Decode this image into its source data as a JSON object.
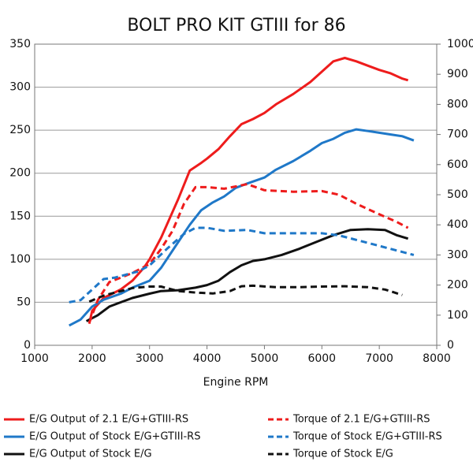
{
  "chart_data": {
    "type": "line",
    "title": "BOLT PRO KIT GTIII for 86",
    "xlabel": "Engine RPM",
    "xlim": [
      1000,
      8000
    ],
    "xticks": [
      1000,
      2000,
      3000,
      4000,
      5000,
      6000,
      7000,
      8000
    ],
    "ylim": [
      0,
      350
    ],
    "yticks": [
      0,
      50,
      100,
      150,
      200,
      250,
      300,
      350
    ],
    "y2lim": [
      0,
      1000
    ],
    "y2ticks": [
      0,
      100,
      200,
      300,
      400,
      500,
      600,
      700,
      800,
      900,
      1000
    ],
    "grid": true,
    "series": [
      {
        "name": "E/G Output of 2.1 E/G+GTIII-RS",
        "color": "#ee1c1c",
        "dashed": false,
        "x": [
          1950,
          2000,
          2200,
          2500,
          2700,
          2900,
          3000,
          3200,
          3300,
          3500,
          3700,
          3900,
          4000,
          4200,
          4400,
          4600,
          4800,
          5000,
          5200,
          5500,
          5800,
          6000,
          6200,
          6400,
          6600,
          6800,
          7000,
          7200,
          7400,
          7500
        ],
        "values": [
          25,
          40,
          55,
          65,
          75,
          90,
          100,
          125,
          140,
          170,
          203,
          212,
          217,
          228,
          243,
          257,
          263,
          270,
          280,
          292,
          306,
          318,
          330,
          334,
          330,
          325,
          320,
          316,
          310,
          308
        ]
      },
      {
        "name": "E/G Output of Stock E/G+GTIII-RS",
        "color": "#1f78c8",
        "dashed": false,
        "x": [
          1600,
          1800,
          2000,
          2200,
          2500,
          2700,
          3000,
          3200,
          3500,
          3700,
          3900,
          4100,
          4300,
          4500,
          4700,
          5000,
          5200,
          5500,
          5800,
          6000,
          6200,
          6400,
          6600,
          6800,
          7000,
          7200,
          7400,
          7600
        ],
        "values": [
          23,
          30,
          45,
          53,
          60,
          67,
          75,
          90,
          120,
          140,
          157,
          166,
          173,
          183,
          188,
          195,
          204,
          214,
          226,
          235,
          240,
          247,
          251,
          249,
          247,
          245,
          243,
          238
        ]
      },
      {
        "name": "E/G Output of Stock E/G",
        "color": "#111111",
        "dashed": false,
        "x": [
          1900,
          2100,
          2300,
          2500,
          2700,
          3000,
          3200,
          3500,
          3800,
          4000,
          4200,
          4400,
          4600,
          4800,
          5000,
          5300,
          5600,
          5900,
          6200,
          6500,
          6800,
          7100,
          7300,
          7500
        ],
        "values": [
          28,
          35,
          45,
          50,
          55,
          60,
          63,
          64,
          67,
          70,
          75,
          85,
          93,
          98,
          100,
          105,
          112,
          120,
          128,
          134,
          135,
          134,
          128,
          124
        ]
      },
      {
        "name": "Torque of 2.1 E/G+GTIII-RS",
        "color": "#ee1c1c",
        "dashed": true,
        "axis": "y2",
        "x": [
          1950,
          2100,
          2300,
          2500,
          2700,
          3000,
          3200,
          3400,
          3600,
          3800,
          4000,
          4300,
          4700,
          5000,
          5500,
          6000,
          6300,
          6600,
          7000,
          7300,
          7500
        ],
        "values": [
          75,
          150,
          210,
          225,
          240,
          270,
          320,
          380,
          470,
          525,
          525,
          520,
          535,
          515,
          510,
          512,
          500,
          470,
          435,
          410,
          390
        ]
      },
      {
        "name": "Torque of Stock E/G+GTIII-RS",
        "color": "#1f78c8",
        "dashed": true,
        "axis": "y2",
        "x": [
          1600,
          1800,
          2000,
          2200,
          2400,
          2600,
          2800,
          3000,
          3300,
          3600,
          3800,
          4000,
          4300,
          4700,
          5000,
          5500,
          6000,
          6300,
          6700,
          7000,
          7300,
          7600
        ],
        "values": [
          143,
          150,
          185,
          220,
          225,
          235,
          245,
          265,
          320,
          370,
          390,
          390,
          380,
          383,
          372,
          372,
          372,
          365,
          345,
          330,
          315,
          300
        ]
      },
      {
        "name": "Torque of Stock E/G",
        "color": "#111111",
        "dashed": true,
        "axis": "y2",
        "x": [
          1950,
          2200,
          2400,
          2700,
          3000,
          3200,
          3500,
          3800,
          4100,
          4400,
          4600,
          4800,
          5200,
          5600,
          6000,
          6400,
          6800,
          7100,
          7400
        ],
        "values": [
          145,
          165,
          175,
          190,
          195,
          195,
          180,
          175,
          172,
          180,
          196,
          198,
          193,
          193,
          195,
          196,
          193,
          185,
          167
        ]
      }
    ]
  }
}
